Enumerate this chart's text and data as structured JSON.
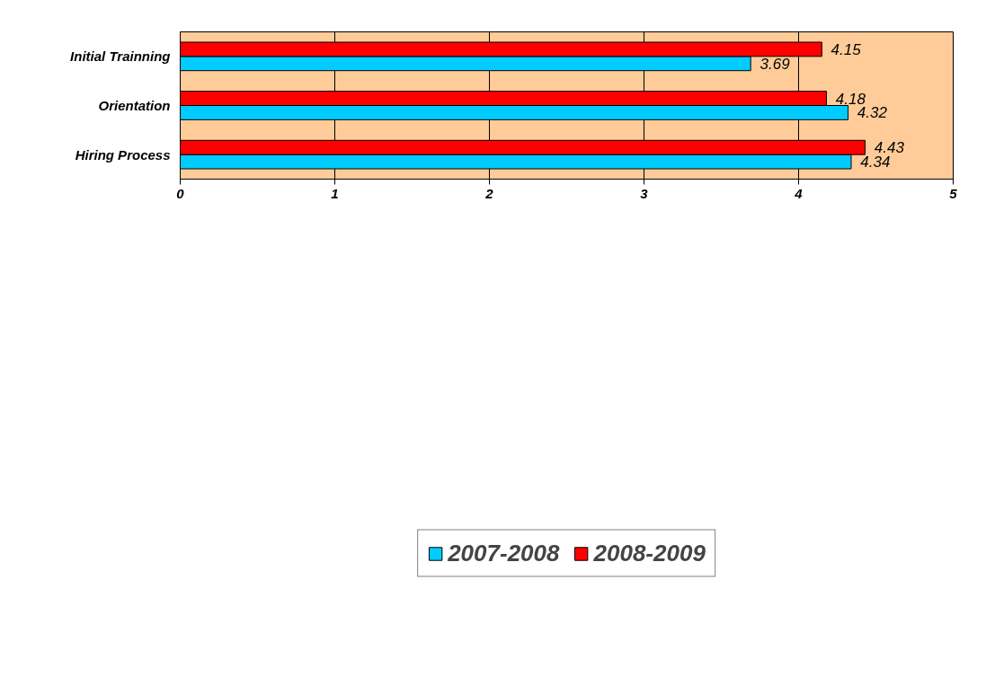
{
  "chart_data": {
    "type": "bar",
    "orientation": "horizontal",
    "categories": [
      "Initial Trainning",
      "Orientation",
      "Hiring Process"
    ],
    "series": [
      {
        "name": "2007-2008",
        "color": "#00ccff",
        "values": [
          3.69,
          4.32,
          4.34
        ]
      },
      {
        "name": "2008-2009",
        "color": "#ff0000",
        "values": [
          4.15,
          4.18,
          4.43
        ]
      }
    ],
    "xlim": [
      0,
      5
    ],
    "xticks": [
      0,
      1,
      2,
      3,
      4,
      5
    ],
    "grid": "x",
    "legend": "bottom",
    "data_labels": true
  }
}
